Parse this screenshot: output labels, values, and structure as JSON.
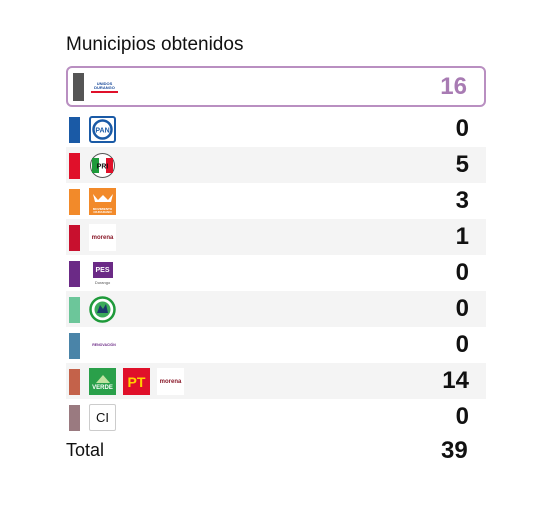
{
  "title": "Municipios obtenidos",
  "rows": [
    {
      "value": "16",
      "color": "#555555",
      "logos": [
        "unidos-durango-logo"
      ],
      "logo_text": [
        "UNIDOS DURANGO"
      ]
    },
    {
      "value": "0",
      "color": "#1a5aa6",
      "logos": [
        "pan-logo"
      ],
      "logo_text": [
        "PAN"
      ]
    },
    {
      "value": "5",
      "color": "#e0102a",
      "logos": [
        "pri-logo"
      ],
      "logo_text": [
        "PRI"
      ]
    },
    {
      "value": "3",
      "color": "#f28a2a",
      "logos": [
        "movimiento-ciudadano-logo"
      ],
      "logo_text": [
        "MOVIMIENTO CIUDADANO"
      ]
    },
    {
      "value": "1",
      "color": "#c8102e",
      "logos": [
        "morena-logo"
      ],
      "logo_text": [
        "morena"
      ]
    },
    {
      "value": "0",
      "color": "#6b2a86",
      "logos": [
        "pes-logo"
      ],
      "logo_text": [
        "PES",
        "Durango"
      ]
    },
    {
      "value": "0",
      "color": "#6cc69a",
      "logos": [
        "panal-logo"
      ],
      "logo_text": [
        ""
      ]
    },
    {
      "value": "0",
      "color": "#4a84a8",
      "logos": [
        "renovacion-logo"
      ],
      "logo_text": [
        "RENOVACIÓN"
      ]
    },
    {
      "value": "14",
      "color": "#c4624a",
      "logos": [
        "verde-logo",
        "pt-logo",
        "morena-logo"
      ],
      "logo_text": [
        "VERDE",
        "PT",
        "morena"
      ]
    },
    {
      "value": "0",
      "color": "#9a7a80",
      "logos": [
        "ci-logo"
      ],
      "logo_text": [
        "CI"
      ]
    }
  ],
  "total_label": "Total",
  "total_value": "39",
  "colors": {
    "selected_border": "#b98fc1",
    "selected_value": "#a87bb3",
    "alt_row": "#f4f4f4"
  }
}
